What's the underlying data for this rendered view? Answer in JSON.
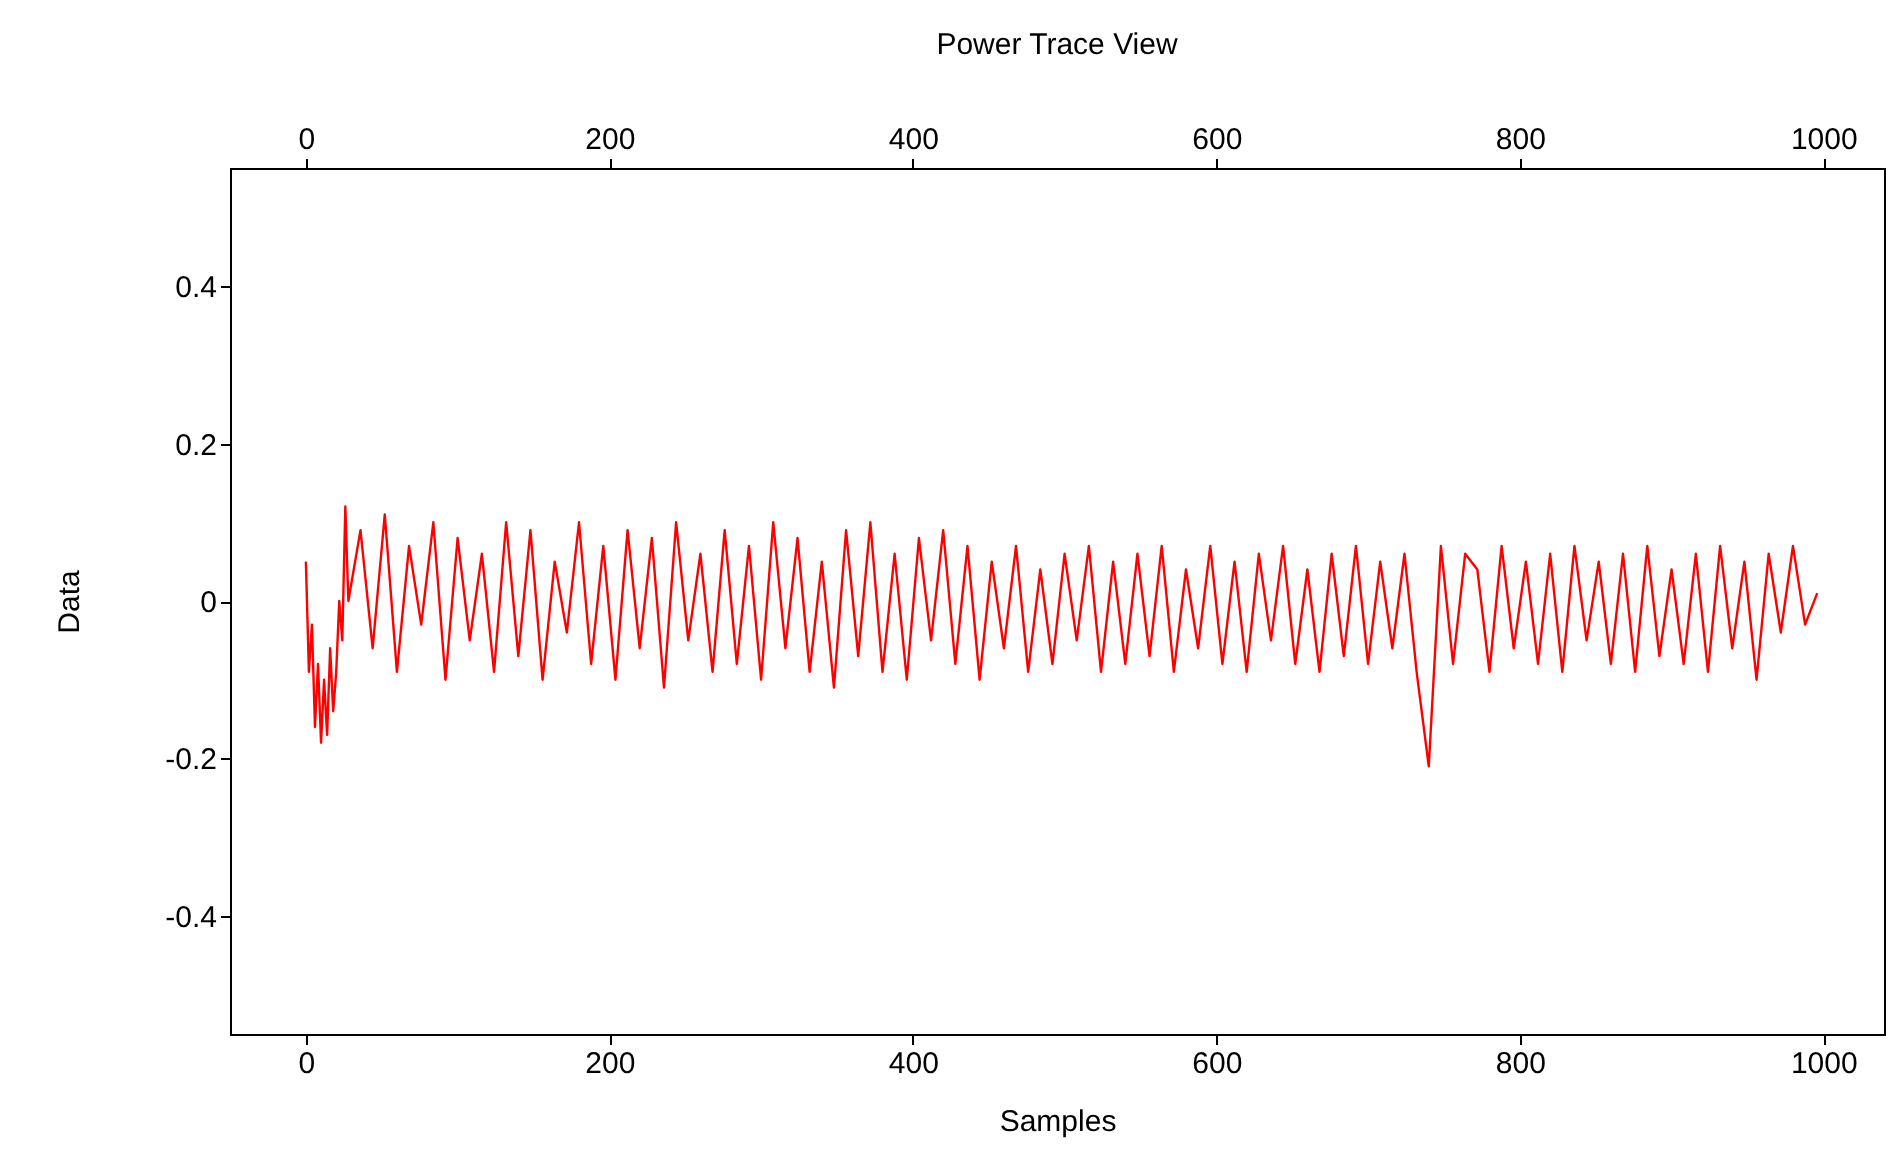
{
  "chart_data": {
    "type": "line",
    "title": "Power Trace View",
    "xlabel": "Samples",
    "ylabel": "Data",
    "xlim": [
      -50,
      1040
    ],
    "xticks": [
      0,
      200,
      400,
      600,
      800,
      1000
    ],
    "x2lim": [
      -50,
      1040
    ],
    "x2ticks": [
      0,
      200,
      400,
      600,
      800,
      1000
    ],
    "ylim": [
      -0.55,
      0.55
    ],
    "yticks": [
      -0.4,
      -0.2,
      0,
      0.2,
      0.4
    ],
    "grid": false,
    "marker": "none",
    "line_style": "solid",
    "series": [
      {
        "color": "#ff0000",
        "x": [
          0,
          2,
          4,
          6,
          8,
          10,
          12,
          14,
          16,
          18,
          20,
          22,
          24,
          26,
          28,
          36,
          44,
          52,
          60,
          68,
          76,
          84,
          92,
          100,
          108,
          116,
          124,
          132,
          140,
          148,
          156,
          164,
          172,
          180,
          188,
          196,
          204,
          212,
          220,
          228,
          236,
          244,
          252,
          260,
          268,
          276,
          284,
          292,
          300,
          308,
          316,
          324,
          332,
          340,
          348,
          356,
          364,
          372,
          380,
          388,
          396,
          404,
          412,
          420,
          428,
          436,
          444,
          452,
          460,
          468,
          476,
          484,
          492,
          500,
          508,
          516,
          524,
          532,
          540,
          548,
          556,
          564,
          572,
          580,
          588,
          596,
          604,
          612,
          620,
          628,
          636,
          644,
          652,
          660,
          668,
          676,
          684,
          692,
          700,
          708,
          716,
          724,
          732,
          740,
          748,
          756,
          764,
          772,
          780,
          788,
          796,
          804,
          812,
          820,
          828,
          836,
          844,
          852,
          860,
          868,
          876,
          884,
          892,
          900,
          908,
          916,
          924,
          932,
          940,
          948,
          956,
          964,
          972,
          980,
          988,
          996
        ],
        "values": [
          0.05,
          -0.09,
          -0.03,
          -0.16,
          -0.08,
          -0.18,
          -0.1,
          -0.17,
          -0.06,
          -0.14,
          -0.09,
          0.0,
          -0.05,
          0.12,
          0.0,
          0.09,
          -0.06,
          0.11,
          -0.09,
          0.07,
          -0.03,
          0.1,
          -0.1,
          0.08,
          -0.05,
          0.06,
          -0.09,
          0.1,
          -0.07,
          0.09,
          -0.1,
          0.05,
          -0.04,
          0.1,
          -0.08,
          0.07,
          -0.1,
          0.09,
          -0.06,
          0.08,
          -0.11,
          0.1,
          -0.05,
          0.06,
          -0.09,
          0.09,
          -0.08,
          0.07,
          -0.1,
          0.1,
          -0.06,
          0.08,
          -0.09,
          0.05,
          -0.11,
          0.09,
          -0.07,
          0.1,
          -0.09,
          0.06,
          -0.1,
          0.08,
          -0.05,
          0.09,
          -0.08,
          0.07,
          -0.1,
          0.05,
          -0.06,
          0.07,
          -0.09,
          0.04,
          -0.08,
          0.06,
          -0.05,
          0.07,
          -0.09,
          0.05,
          -0.08,
          0.06,
          -0.07,
          0.07,
          -0.09,
          0.04,
          -0.06,
          0.07,
          -0.08,
          0.05,
          -0.09,
          0.06,
          -0.05,
          0.07,
          -0.08,
          0.04,
          -0.09,
          0.06,
          -0.07,
          0.07,
          -0.08,
          0.05,
          -0.06,
          0.06,
          -0.09,
          -0.21,
          0.07,
          -0.08,
          0.06,
          0.04,
          -0.09,
          0.07,
          -0.06,
          0.05,
          -0.08,
          0.06,
          -0.09,
          0.07,
          -0.05,
          0.05,
          -0.08,
          0.06,
          -0.09,
          0.07,
          -0.07,
          0.04,
          -0.08,
          0.06,
          -0.09,
          0.07,
          -0.06,
          0.05,
          -0.1,
          0.06,
          -0.04,
          0.07,
          -0.03,
          0.01
        ]
      }
    ]
  }
}
